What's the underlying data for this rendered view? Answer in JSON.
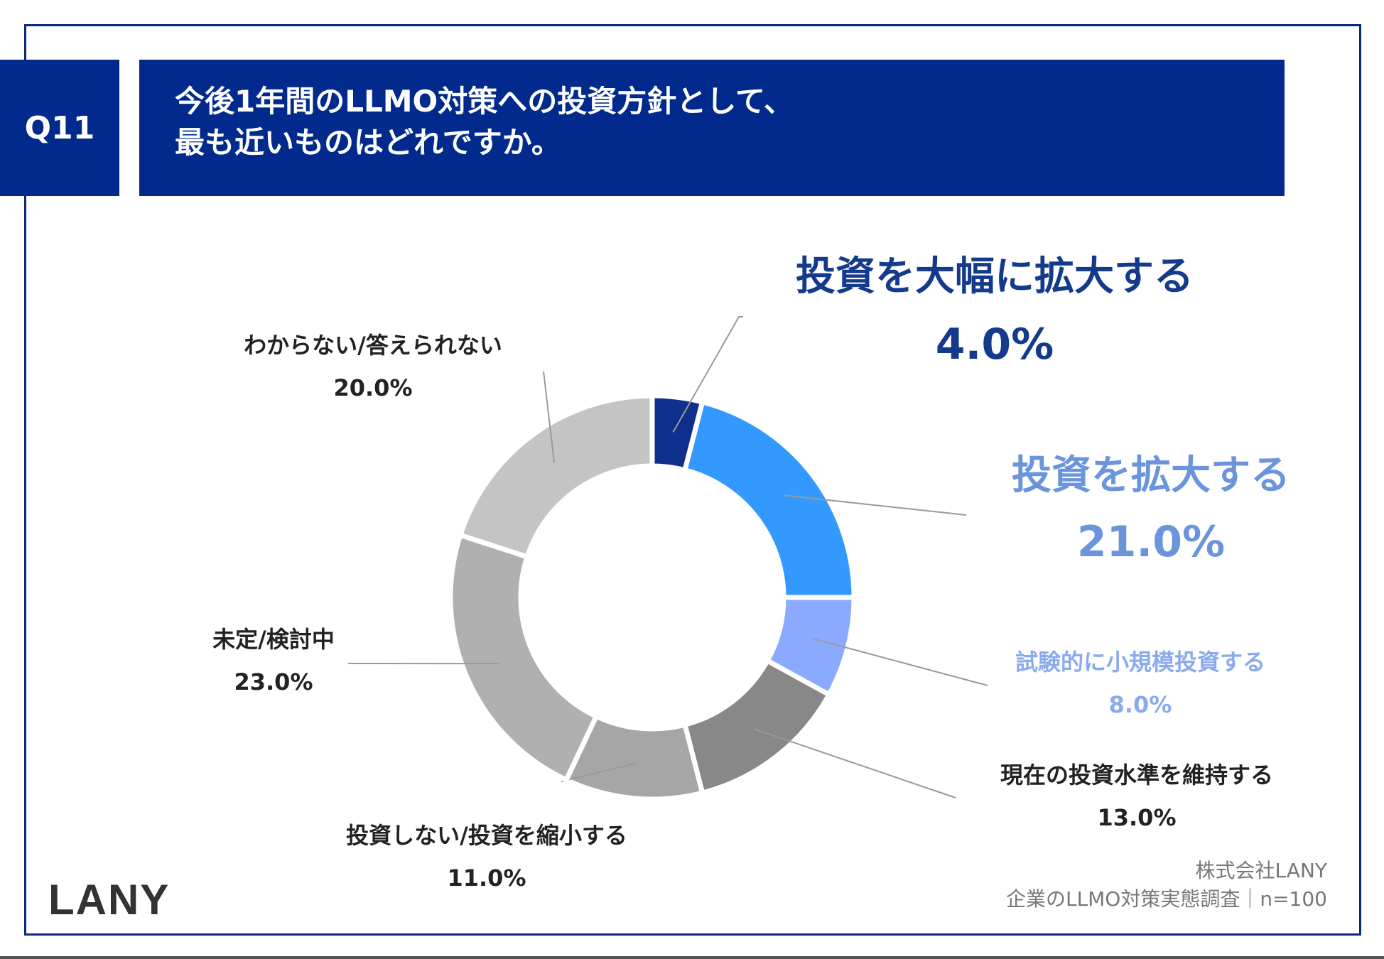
{
  "question": {
    "number": "Q11",
    "title_line1": "今後1年間のLLMO対策への投資方針として、",
    "title_line2": "最も近いものはどれですか。"
  },
  "chart_data": {
    "type": "pie",
    "style": "donut",
    "title": "今後1年間のLLMO対策への投資方針として、最も近いものはどれですか。",
    "categories": [
      "投資を大幅に拡大する",
      "投資を拡大する",
      "試験的に小規模投資する",
      "現在の投資水準を維持する",
      "投資しない/投資を縮小する",
      "未定/検討中",
      "わからない/答えられない"
    ],
    "values": [
      4.0,
      21.0,
      8.0,
      13.0,
      11.0,
      23.0,
      20.0
    ],
    "value_labels": [
      "4.0%",
      "21.0%",
      "8.0%",
      "13.0%",
      "11.0%",
      "23.0%",
      "20.0%"
    ],
    "colors": [
      "#0f2f8c",
      "#3399ff",
      "#8aaaff",
      "#888888",
      "#a6a6a6",
      "#b0b0b0",
      "#c4c4c4"
    ],
    "label_colors": [
      "#143a8c",
      "#6a94dc",
      "#8aaaf0",
      "#222222",
      "#222222",
      "#222222",
      "#222222"
    ]
  },
  "footer": {
    "brand": "LANY",
    "company": "株式会社LANY",
    "survey": "企業のLLMO対策実態調査｜n=100"
  }
}
